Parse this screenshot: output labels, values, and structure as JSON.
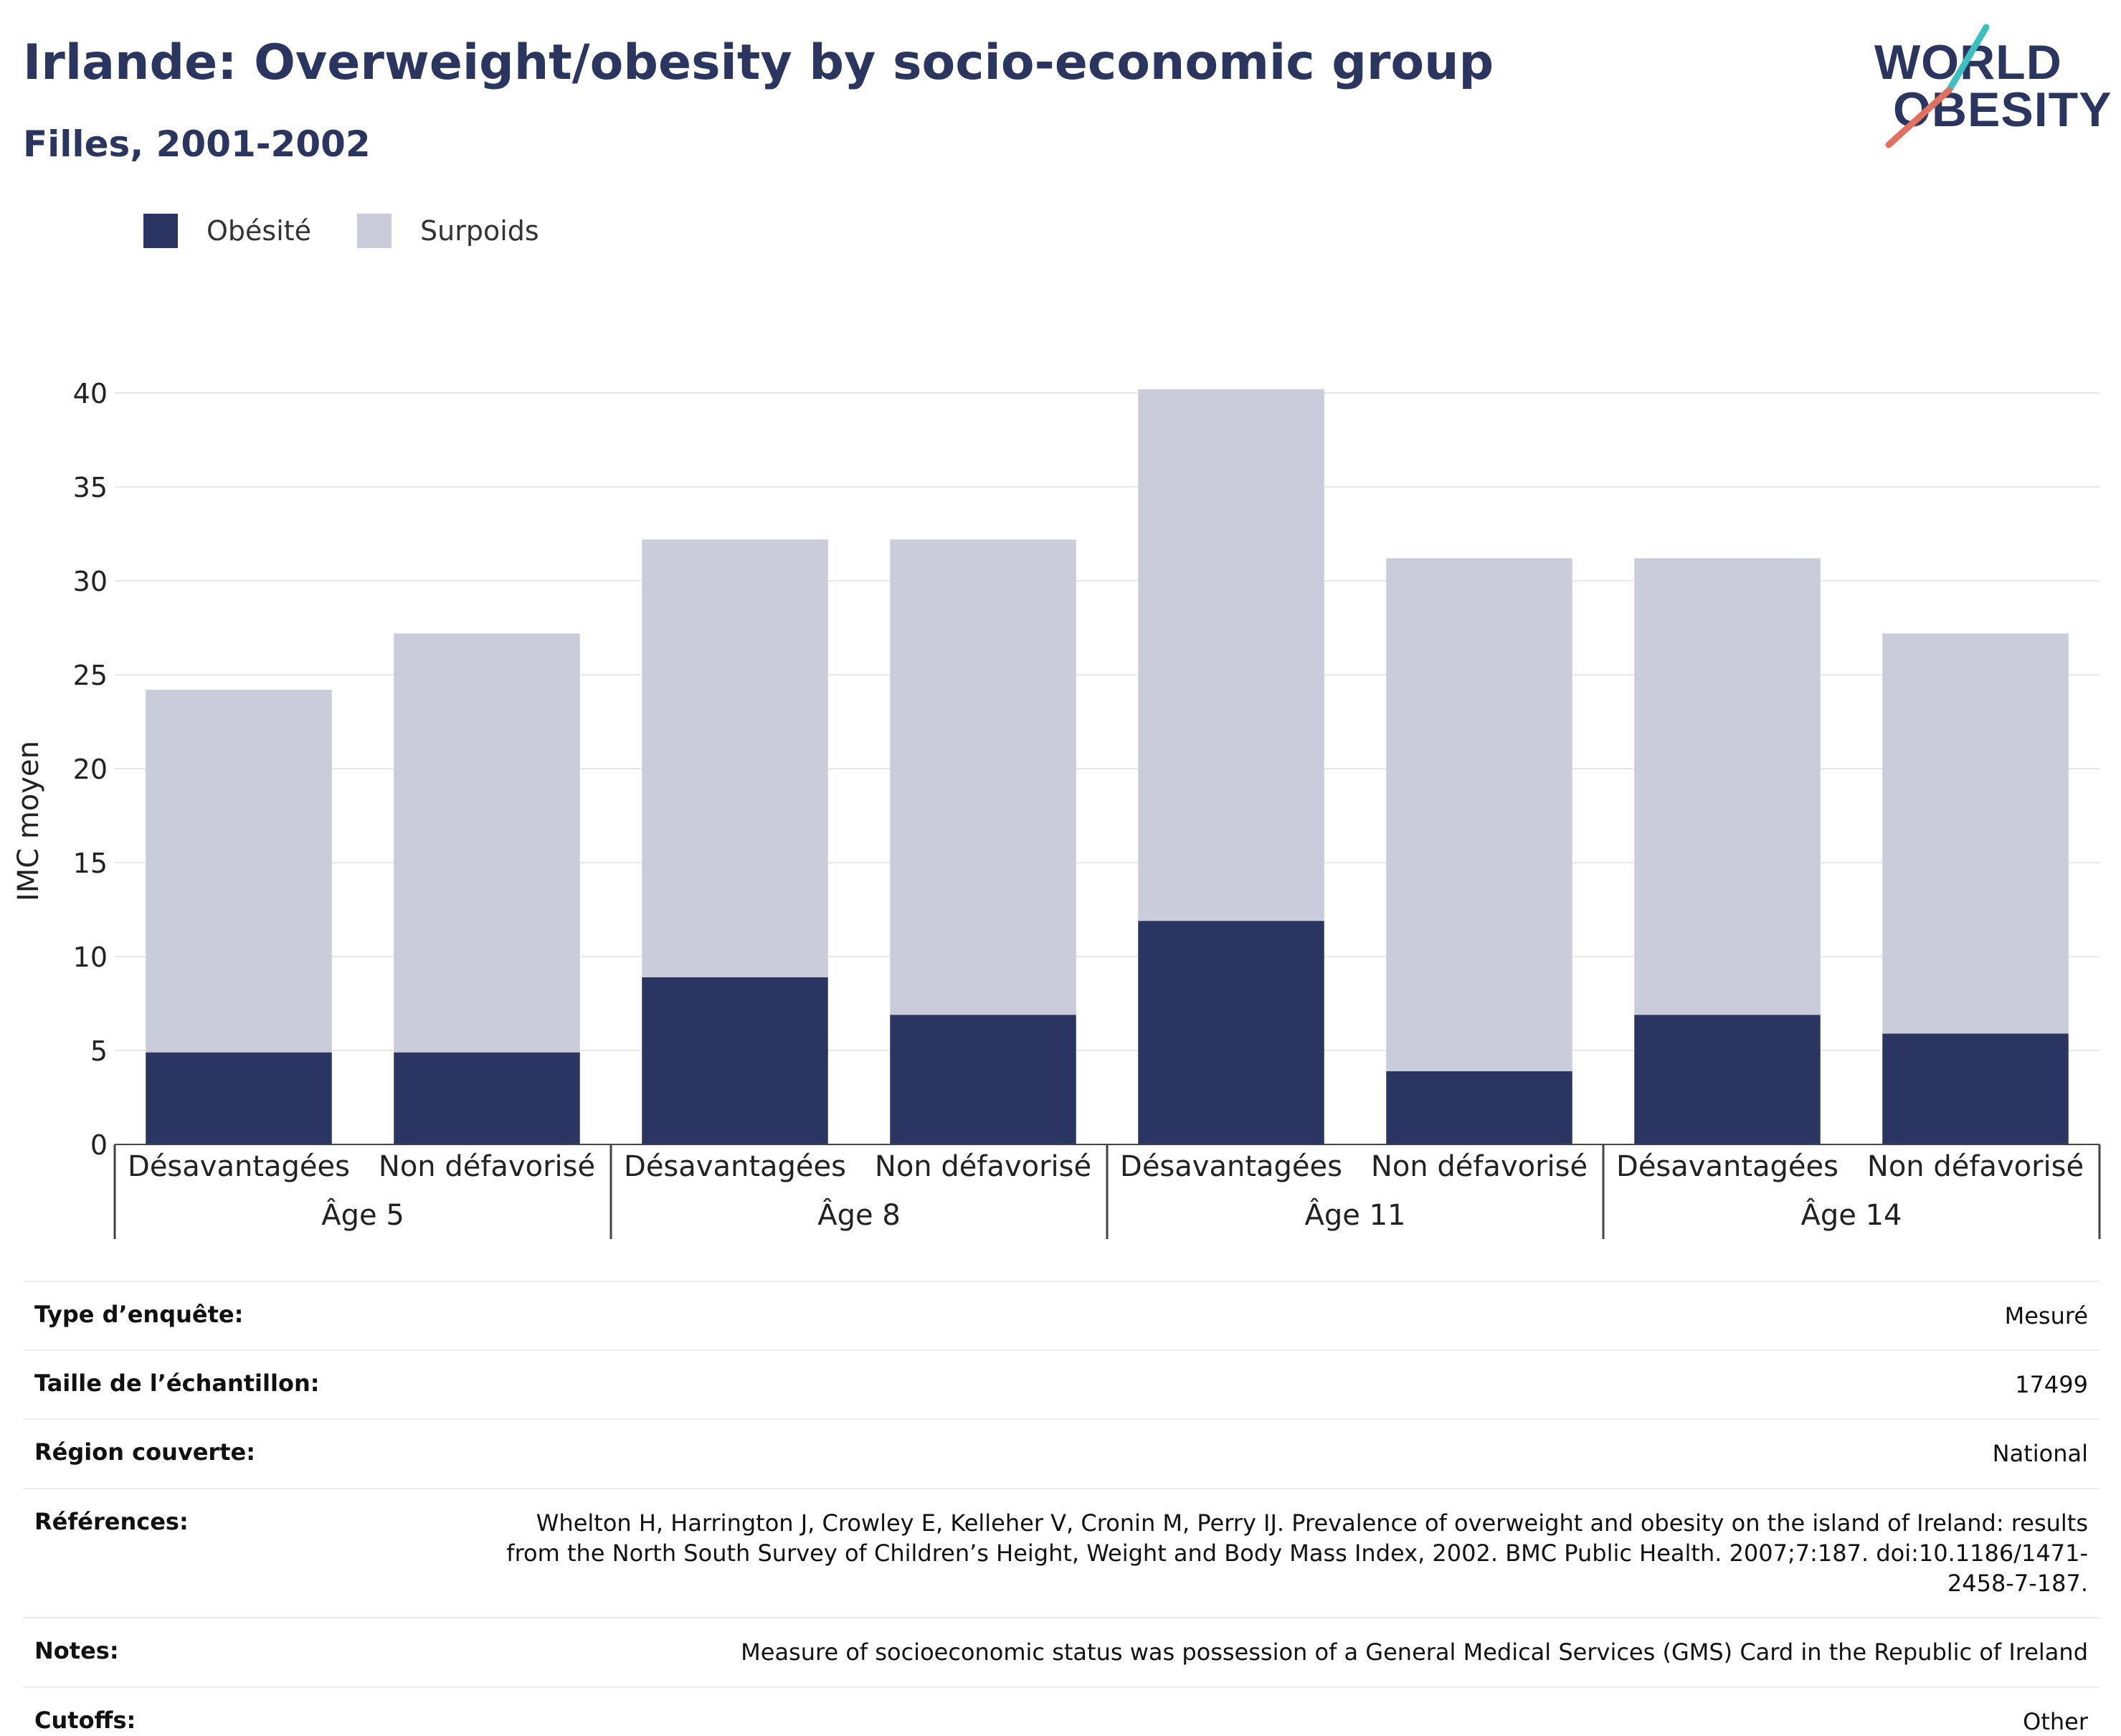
{
  "header": {
    "title": "Irlande: Overweight/obesity by socio-economic group",
    "subtitle": "Filles, 2001-2002"
  },
  "logo": {
    "line1": "WORLD",
    "line2": "OBESITY"
  },
  "colors": {
    "obesity": "#2a3562",
    "overweight": "#cbccd9",
    "text": "#2a3560",
    "grid": "#e8e8e8"
  },
  "chart_data": {
    "type": "bar",
    "stacked": true,
    "ylabel": "IMC moyen",
    "ylim": [
      0,
      40
    ],
    "yticks": [
      0,
      5,
      10,
      15,
      20,
      25,
      30,
      35,
      40
    ],
    "grid": true,
    "legend_position": "top-left",
    "groups": [
      "Âge 5",
      "Âge 8",
      "Âge 11",
      "Âge 14"
    ],
    "categories": [
      "Désavantagées",
      "Non défavorisé",
      "Désavantagées",
      "Non défavorisé",
      "Désavantagées",
      "Non défavorisé",
      "Désavantagées",
      "Non défavorisé"
    ],
    "series": [
      {
        "name": "Obésité",
        "values": [
          4.9,
          4.9,
          8.9,
          6.9,
          11.9,
          3.9,
          6.9,
          5.9
        ]
      },
      {
        "name": "Surpoids",
        "values": [
          19.3,
          22.3,
          23.3,
          25.3,
          28.3,
          27.3,
          24.3,
          21.3
        ]
      }
    ]
  },
  "info": [
    {
      "key": "Type d’enquête:",
      "value": "Mesuré"
    },
    {
      "key": "Taille de l’échantillon:",
      "value": "17499"
    },
    {
      "key": "Région couverte:",
      "value": "National"
    },
    {
      "key": "Références:",
      "value": "Whelton H, Harrington J, Crowley E, Kelleher V, Cronin M, Perry IJ. Prevalence of overweight and obesity on the island of Ireland: results from the North South Survey of Children’s Height, Weight and Body Mass Index, 2002. BMC Public Health. 2007;7:187. doi:10.1186/1471-2458-7-187."
    },
    {
      "key": "Notes:",
      "value": "Measure of socioeconomic status was possession of a General Medical Services (GMS) Card in the Republic of Ireland"
    },
    {
      "key": "Cutoffs:",
      "value": "Other"
    }
  ]
}
